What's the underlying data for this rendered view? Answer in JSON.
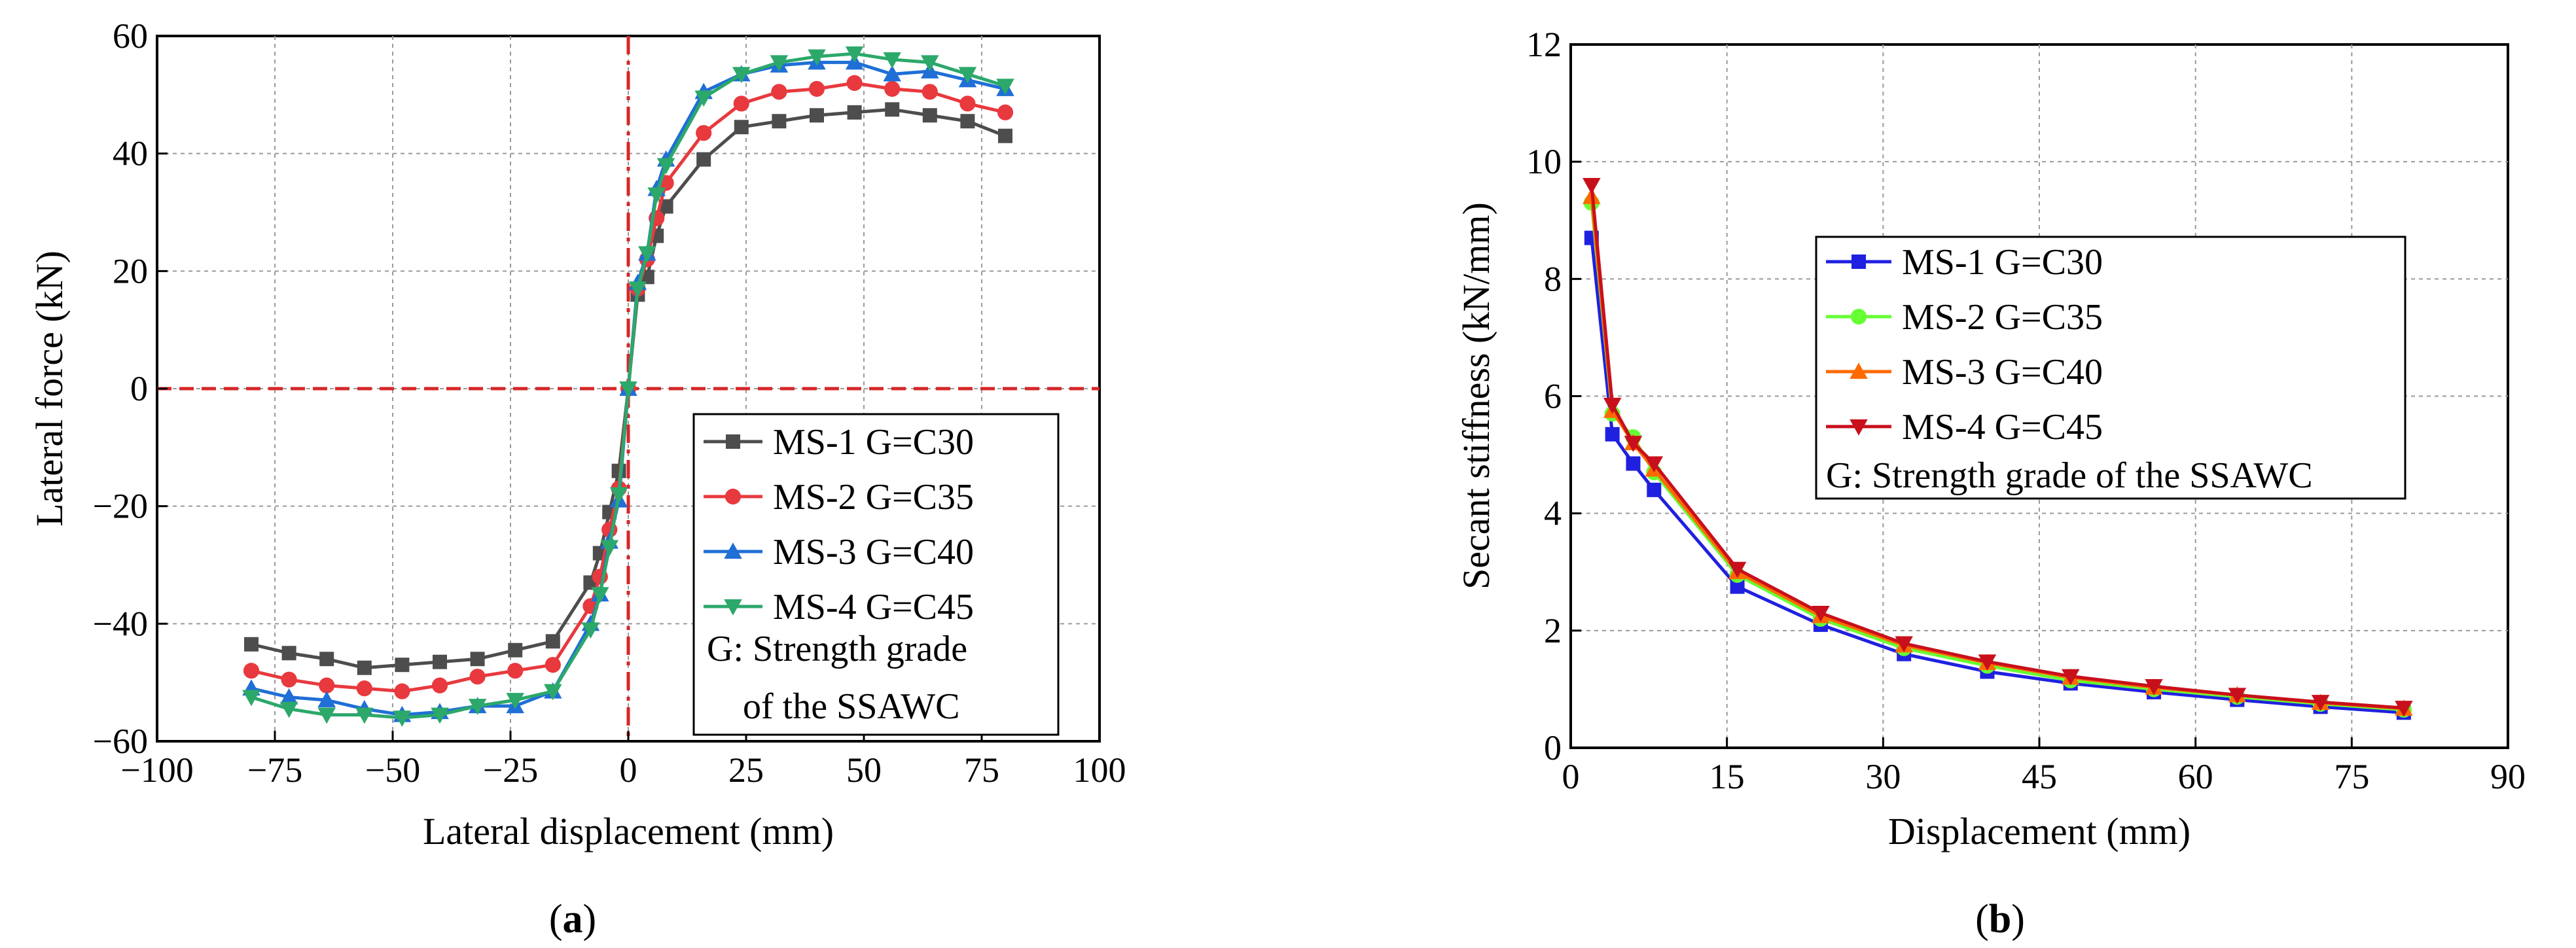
{
  "chart_data": [
    {
      "type": "line",
      "panel": "(a)",
      "caption_open": "(",
      "caption_letter": "a",
      "caption_close": ")",
      "xlabel": "Lateral displacement (mm)",
      "ylabel": "Lateral force (kN)",
      "xlim": [
        -100,
        100
      ],
      "ylim": [
        -60,
        60
      ],
      "xticks": [
        -100,
        -75,
        -50,
        -25,
        0,
        25,
        50,
        75,
        100
      ],
      "yticks": [
        -60,
        -40,
        -20,
        0,
        20,
        40,
        60
      ],
      "xtick_labels": [
        "−100",
        "−75",
        "−50",
        "−25",
        "0",
        "25",
        "50",
        "75",
        "100"
      ],
      "ytick_labels": [
        "−60",
        "−40",
        "−20",
        "0",
        "20",
        "40",
        "60"
      ],
      "grid": true,
      "reference_lines": [
        {
          "axis": "x",
          "value": 0,
          "color": "#d62728",
          "style": "dash-dot"
        },
        {
          "axis": "y",
          "value": 0,
          "color": "#d62728",
          "style": "dashed"
        }
      ],
      "legend_position": "bottom-right",
      "legend_note": [
        "G: Strength grade",
        "of the SSAWC"
      ],
      "series": [
        {
          "name": "MS-1  G=C30",
          "color": "#4d4d4d",
          "marker": "square",
          "x": [
            -80,
            -72,
            -64,
            -56,
            -48,
            -40,
            -32,
            -24,
            -16,
            -8,
            -6,
            -4,
            -2,
            0,
            2,
            4,
            6,
            8,
            16,
            24,
            32,
            40,
            48,
            56,
            64,
            72,
            80
          ],
          "y": [
            -43.5,
            -45,
            -46,
            -47.5,
            -47,
            -46.5,
            -46,
            -44.5,
            -43,
            -33,
            -28,
            -21,
            -14,
            0,
            16,
            19,
            26,
            31,
            39,
            44.5,
            45.5,
            46.5,
            47,
            47.5,
            46.5,
            45.5,
            43
          ]
        },
        {
          "name": "MS-2  G=C35",
          "color": "#e8393e",
          "marker": "circle",
          "x": [
            -80,
            -72,
            -64,
            -56,
            -48,
            -40,
            -32,
            -24,
            -16,
            -8,
            -6,
            -4,
            -2,
            0,
            2,
            4,
            6,
            8,
            16,
            24,
            32,
            40,
            48,
            56,
            64,
            72,
            80
          ],
          "y": [
            -48,
            -49.5,
            -50.5,
            -51,
            -51.5,
            -50.5,
            -49,
            -48,
            -47,
            -37,
            -32,
            -24,
            -17,
            0,
            17,
            22,
            29,
            35,
            43.5,
            48.5,
            50.5,
            51,
            52,
            51,
            50.5,
            48.5,
            47
          ]
        },
        {
          "name": "MS-3  G=C40",
          "color": "#1f6fd6",
          "marker": "triangle-up",
          "x": [
            -80,
            -72,
            -64,
            -56,
            -48,
            -40,
            -32,
            -24,
            -16,
            -8,
            -6,
            -4,
            -2,
            0,
            2,
            4,
            6,
            8,
            16,
            24,
            32,
            40,
            48,
            56,
            64,
            72,
            80
          ],
          "y": [
            -51,
            -52.5,
            -53,
            -54.5,
            -55.5,
            -55,
            -54,
            -54,
            -51.5,
            -40,
            -35,
            -26,
            -19,
            0,
            18,
            23,
            34,
            39,
            50.5,
            53.5,
            55,
            55.5,
            55.5,
            53.5,
            54,
            52.5,
            51
          ]
        },
        {
          "name": "MS-4  G=C45",
          "color": "#2ca86a",
          "marker": "triangle-down",
          "x": [
            -80,
            -72,
            -64,
            -56,
            -48,
            -40,
            -32,
            -24,
            -16,
            -8,
            -6,
            -4,
            -2,
            0,
            2,
            4,
            6,
            8,
            16,
            24,
            32,
            40,
            48,
            56,
            64,
            72,
            80
          ],
          "y": [
            -52.5,
            -54.5,
            -55.5,
            -55.5,
            -56,
            -55.5,
            -54,
            -53,
            -51.5,
            -41,
            -35,
            -27,
            -18,
            0,
            17,
            23,
            33,
            38,
            49.5,
            53.5,
            55.5,
            56.5,
            57,
            56,
            55.5,
            53.5,
            51.5
          ]
        }
      ]
    },
    {
      "type": "line",
      "panel": "(b)",
      "caption_open": "(",
      "caption_letter": "b",
      "caption_close": ")",
      "xlabel": "Displacement (mm)",
      "ylabel": "Secant stiffness (kN/mm)",
      "xlim": [
        0,
        90
      ],
      "ylim": [
        0,
        12
      ],
      "xticks": [
        0,
        15,
        30,
        45,
        60,
        75,
        90
      ],
      "yticks": [
        0,
        2,
        4,
        6,
        8,
        10,
        12
      ],
      "xtick_labels": [
        "0",
        "15",
        "30",
        "45",
        "60",
        "75",
        "90"
      ],
      "ytick_labels": [
        "0",
        "2",
        "4",
        "6",
        "8",
        "10",
        "12"
      ],
      "grid": true,
      "legend_position": "top-right",
      "legend_note": [
        "G: Strength grade of the SSAWC"
      ],
      "series": [
        {
          "name": "MS-1  G=C30",
          "color": "#2020e0",
          "marker": "square",
          "x": [
            2,
            4,
            6,
            8,
            16,
            24,
            32,
            40,
            48,
            56,
            64,
            72,
            80
          ],
          "y": [
            8.7,
            5.35,
            4.85,
            4.4,
            2.75,
            2.1,
            1.6,
            1.3,
            1.1,
            0.95,
            0.82,
            0.7,
            0.6
          ]
        },
        {
          "name": "MS-2  G=C35",
          "color": "#66ff33",
          "marker": "circle",
          "x": [
            2,
            4,
            6,
            8,
            16,
            24,
            32,
            40,
            48,
            56,
            64,
            72,
            80
          ],
          "y": [
            9.3,
            5.7,
            5.3,
            4.7,
            2.95,
            2.2,
            1.7,
            1.4,
            1.15,
            1.0,
            0.87,
            0.75,
            0.65
          ]
        },
        {
          "name": "MS-3  G=C40",
          "color": "#ff6a00",
          "marker": "triangle-up",
          "x": [
            2,
            4,
            6,
            8,
            16,
            24,
            32,
            40,
            48,
            56,
            64,
            72,
            80
          ],
          "y": [
            9.4,
            5.75,
            5.2,
            4.75,
            3.0,
            2.25,
            1.75,
            1.45,
            1.2,
            1.03,
            0.9,
            0.77,
            0.67
          ]
        },
        {
          "name": "MS-4  G=C45",
          "color": "#c8101c",
          "marker": "triangle-down",
          "x": [
            2,
            4,
            6,
            8,
            16,
            24,
            32,
            40,
            48,
            56,
            64,
            72,
            80
          ],
          "y": [
            9.6,
            5.85,
            5.2,
            4.85,
            3.05,
            2.3,
            1.78,
            1.47,
            1.22,
            1.05,
            0.9,
            0.78,
            0.68
          ]
        }
      ]
    }
  ]
}
